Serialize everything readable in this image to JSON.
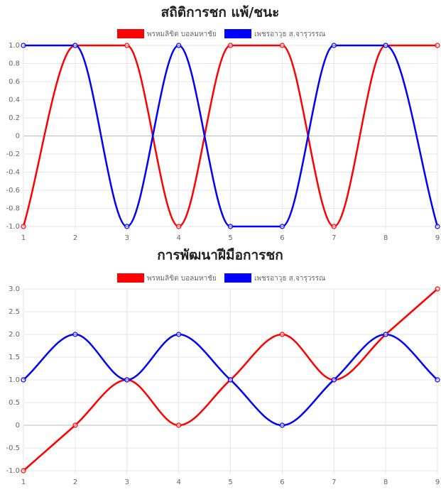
{
  "chart_data": [
    {
      "type": "line",
      "title": "สถิติการชก แพ้/ชนะ",
      "x": [
        1,
        2,
        3,
        4,
        5,
        6,
        7,
        8,
        9
      ],
      "series": [
        {
          "name": "พรหมลิขิต บอลมหาชัย",
          "color": "#ff0000",
          "values": [
            -1,
            1,
            1,
            -1,
            1,
            1,
            -1,
            1,
            1
          ]
        },
        {
          "name": "เพชรอาวุธ ส.จารุวรรณ",
          "color": "#0000ff",
          "values": [
            1,
            1,
            -1,
            1,
            -1,
            -1,
            1,
            1,
            -1
          ]
        }
      ],
      "xlim": [
        1,
        9
      ],
      "xticks": [
        1,
        2,
        3,
        4,
        5,
        6,
        7,
        8,
        9
      ],
      "ylim": [
        -1,
        1
      ],
      "yticks": [
        {
          "value": -1,
          "label": "-1.0"
        },
        -0.8,
        -0.6,
        -0.4,
        -0.2,
        0,
        0.2,
        0.4,
        0.6,
        0.8,
        {
          "value": 1,
          "label": "1.0"
        }
      ],
      "grid": true,
      "legend": "top"
    },
    {
      "type": "line",
      "title": "การพัฒนาฝีมือการชก",
      "x": [
        1,
        2,
        3,
        4,
        5,
        6,
        7,
        8,
        9
      ],
      "series": [
        {
          "name": "พรหมลิขิต บอลมหาชัย",
          "color": "#ff0000",
          "values": [
            -1,
            0,
            1,
            0,
            1,
            2,
            1,
            2,
            3
          ]
        },
        {
          "name": "เพชรอาวุธ ส.จารุวรรณ",
          "color": "#0000ff",
          "values": [
            1,
            2,
            1,
            2,
            1,
            0,
            1,
            2,
            1
          ]
        }
      ],
      "xlim": [
        1,
        9
      ],
      "xticks": [
        1,
        2,
        3,
        4,
        5,
        6,
        7,
        8,
        9
      ],
      "ylim": [
        -1,
        3
      ],
      "yticks": [
        {
          "value": -1,
          "label": "-1.0"
        },
        -0.5,
        0,
        0.5,
        {
          "value": 1,
          "label": "1.0"
        },
        1.5,
        {
          "value": 2,
          "label": "2.0"
        },
        2.5,
        {
          "value": 3,
          "label": "3.0"
        }
      ],
      "grid": true,
      "legend": "top"
    }
  ]
}
